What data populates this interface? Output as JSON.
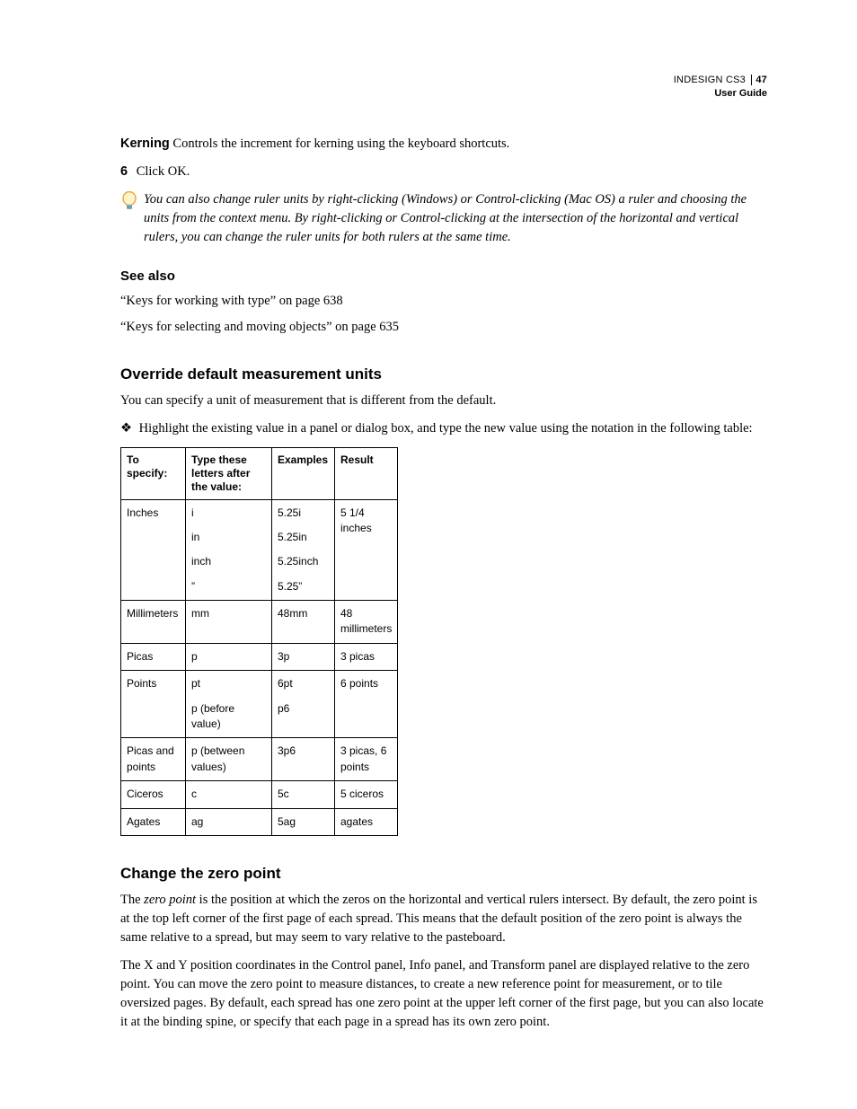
{
  "running_head": {
    "product": "INDESIGN CS3",
    "subtitle": "User Guide",
    "page": "47"
  },
  "kerning": {
    "label": "Kerning",
    "text": "Controls the increment for kerning using the keyboard shortcuts."
  },
  "step6": {
    "num": "6",
    "text": "Click OK."
  },
  "tip": "You can also change ruler units by right-clicking (Windows) or Control-clicking (Mac OS) a ruler and choosing the units from the context menu. By right-clicking or Control-clicking at the intersection of the horizontal and vertical rulers, you can change the ruler units for both rulers at the same time.",
  "see_also": {
    "heading": "See also",
    "link1": "“Keys for working with type” on page 638",
    "link2": "“Keys for selecting and moving objects” on page 635"
  },
  "override": {
    "heading": "Override default measurement units",
    "intro": "You can specify a unit of measurement that is different from the default.",
    "bullet": "Highlight the existing value in a panel or dialog box, and type the new value using the notation in the following table:"
  },
  "table": {
    "headers": [
      "To specify:",
      "Type these letters after the value:",
      "Examples",
      "Result"
    ],
    "rows": [
      {
        "specify": "Inches",
        "type": [
          "i",
          "in",
          "inch",
          "”"
        ],
        "examples": [
          "5.25i",
          "5.25in",
          "5.25inch",
          "5.25”"
        ],
        "result": "5 1/4 inches"
      },
      {
        "specify": "Millimeters",
        "type": [
          "mm"
        ],
        "examples": [
          "48mm"
        ],
        "result": "48 millimeters"
      },
      {
        "specify": "Picas",
        "type": [
          "p"
        ],
        "examples": [
          "3p"
        ],
        "result": "3 picas"
      },
      {
        "specify": "Points",
        "type": [
          "pt",
          "p (before value)"
        ],
        "examples": [
          "6pt",
          "p6"
        ],
        "result": "6 points"
      },
      {
        "specify": "Picas and points",
        "type": [
          "p (between values)"
        ],
        "examples": [
          "3p6"
        ],
        "result": "3 picas, 6 points"
      },
      {
        "specify": "Ciceros",
        "type": [
          "c"
        ],
        "examples": [
          "5c"
        ],
        "result": "5 ciceros"
      },
      {
        "specify": "Agates",
        "type": [
          "ag"
        ],
        "examples": [
          "5ag"
        ],
        "result": "agates"
      }
    ]
  },
  "zero": {
    "heading": "Change the zero point",
    "p1_pre": "The ",
    "p1_em": "zero point",
    "p1_post": " is the position at which the zeros on the horizontal and vertical rulers intersect. By default, the zero point is at the top left corner of the first page of each spread. This means that the default position of the zero point is always the same relative to a spread, but may seem to vary relative to the pasteboard.",
    "p2": "The X and Y position coordinates in the Control panel, Info panel, and Transform panel are displayed relative to the zero point. You can move the zero point to measure distances, to create a new reference point for measurement, or to tile oversized pages. By default, each spread has one zero point at the upper left corner of the first page, but you can also locate it at the binding spine, or specify that each page in a spread has its own zero point."
  },
  "style": {
    "tip_bulb_outer": "#e8a33a",
    "tip_bulb_inner": "#fff3c8",
    "tip_base": "#7aa8c8"
  }
}
